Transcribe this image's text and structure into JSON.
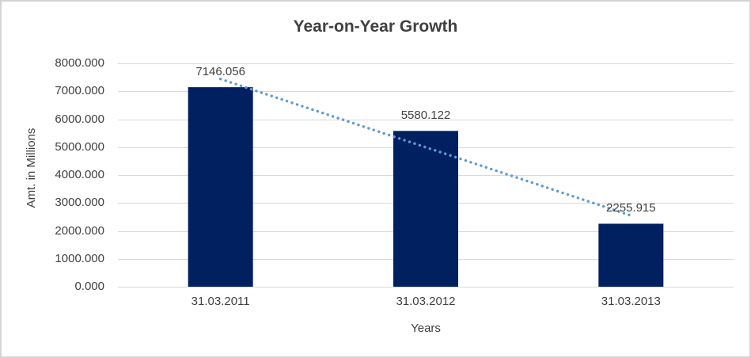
{
  "chart_data": {
    "type": "bar",
    "title": "Year-on-Year Growth",
    "categories": [
      "31.03.2011",
      "31.03.2012",
      "31.03.2013"
    ],
    "values": [
      7146.056,
      5580.122,
      2255.915
    ],
    "data_labels": [
      "7146.056",
      "5580.122",
      "2255.915"
    ],
    "xlabel": "Years",
    "ylabel": "Amt. in Millions",
    "ylim": [
      0,
      8000
    ],
    "ytick_values": [
      0,
      1000,
      2000,
      3000,
      4000,
      5000,
      6000,
      7000,
      8000
    ],
    "ytick_labels": [
      "0.000",
      "1000.000",
      "2000.000",
      "3000.000",
      "4000.000",
      "5000.000",
      "6000.000",
      "7000.000",
      "8000.000"
    ],
    "grid": true,
    "legend": "none",
    "trendline": {
      "type": "linear",
      "style": "round-dot"
    },
    "colors": {
      "bar": "#002060",
      "trendline": "#5B9BD5",
      "gridline": "#D9D9D9",
      "axis_line": "#D9D9D9",
      "text": "#404040",
      "title": "#404040",
      "background": "#FFFFFF",
      "border": "#D4D4D4"
    }
  }
}
